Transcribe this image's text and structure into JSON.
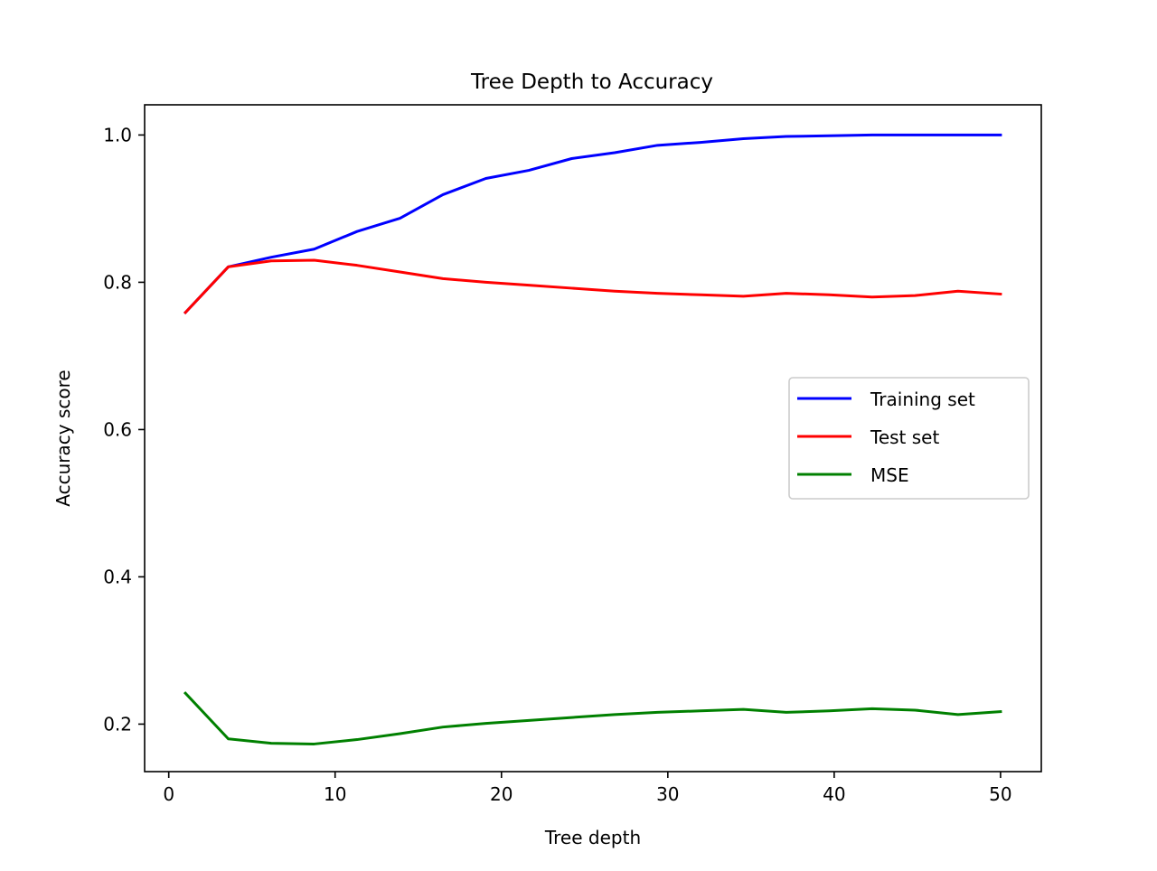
{
  "chart_data": {
    "type": "line",
    "title": "Tree Depth to Accuracy",
    "xlabel": "Tree depth",
    "ylabel": "Accuracy score",
    "xlim": [
      -1.45,
      52.45
    ],
    "ylim": [
      0.1355,
      1.041
    ],
    "xticks": [
      0,
      10,
      20,
      30,
      40,
      50
    ],
    "yticks": [
      0.2,
      0.4,
      0.6,
      0.8,
      1.0
    ],
    "xtick_labels": [
      "0",
      "10",
      "20",
      "30",
      "40",
      "50"
    ],
    "ytick_labels": [
      "0.2",
      "0.4",
      "0.6",
      "0.8",
      "1.0"
    ],
    "grid": false,
    "legend_position": "center-right",
    "x": [
      1,
      3.58,
      6.16,
      8.74,
      11.32,
      13.9,
      16.48,
      19.06,
      21.64,
      24.22,
      26.8,
      29.38,
      31.96,
      34.54,
      37.12,
      39.7,
      42.28,
      44.86,
      47.44,
      50
    ],
    "series": [
      {
        "name": "Training set",
        "color": "#0000ff",
        "values": [
          0.759,
          0.821,
          0.834,
          0.845,
          0.869,
          0.887,
          0.919,
          0.941,
          0.952,
          0.968,
          0.976,
          0.986,
          0.99,
          0.995,
          0.998,
          0.999,
          1.0,
          1.0,
          1.0,
          1.0
        ]
      },
      {
        "name": "Test set",
        "color": "#ff0000",
        "values": [
          0.759,
          0.821,
          0.829,
          0.83,
          0.823,
          0.814,
          0.805,
          0.8,
          0.796,
          0.792,
          0.788,
          0.785,
          0.783,
          0.781,
          0.785,
          0.783,
          0.78,
          0.782,
          0.788,
          0.784
        ]
      },
      {
        "name": "MSE",
        "color": "#008000",
        "values": [
          0.242,
          0.18,
          0.174,
          0.173,
          0.179,
          0.187,
          0.196,
          0.201,
          0.205,
          0.209,
          0.213,
          0.216,
          0.218,
          0.22,
          0.216,
          0.218,
          0.221,
          0.219,
          0.213,
          0.217
        ]
      }
    ]
  }
}
